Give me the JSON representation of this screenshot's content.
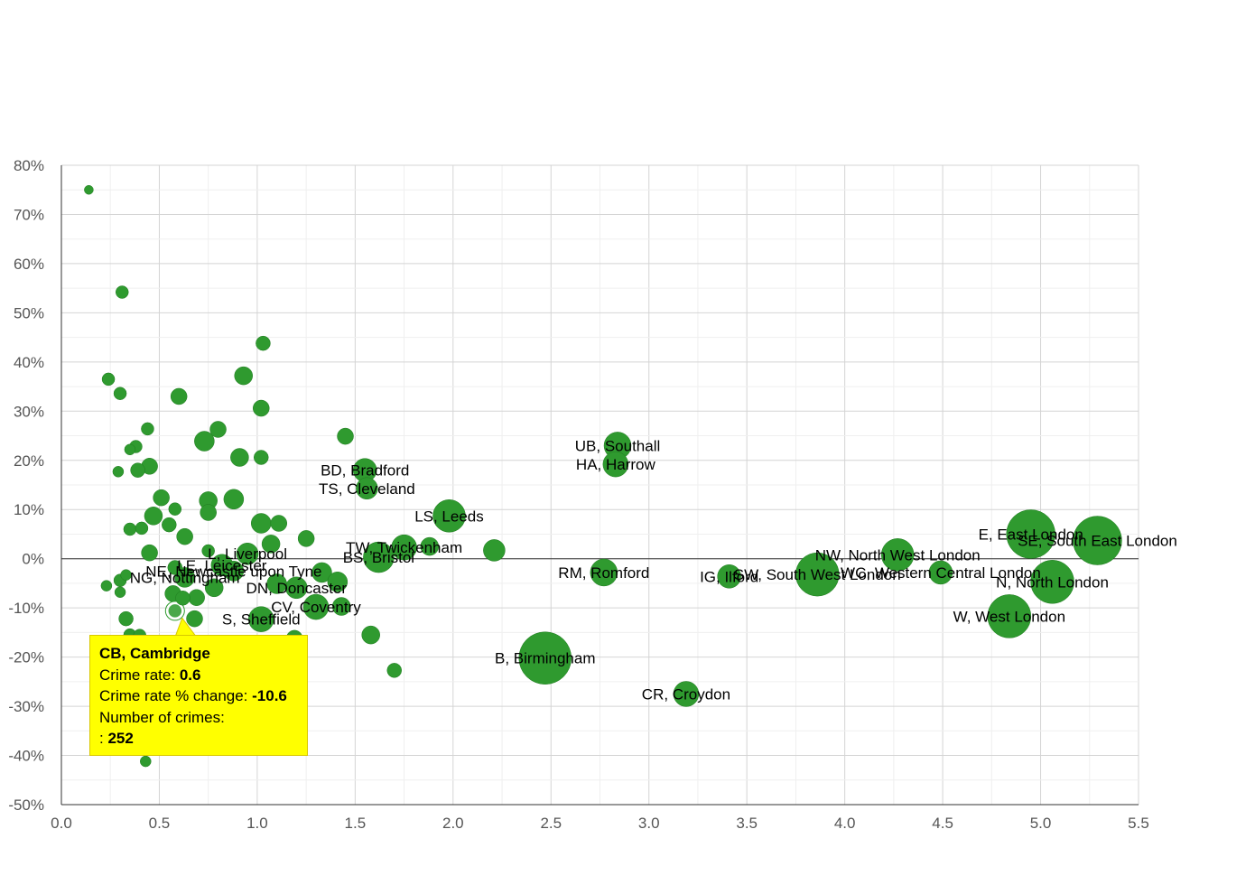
{
  "chart_data": {
    "type": "scatter",
    "xlim": [
      0,
      5.5
    ],
    "ylim": [
      -50,
      80
    ],
    "x_ticks": [
      "0.0",
      "0.5",
      "1.0",
      "1.5",
      "2.0",
      "2.5",
      "3.0",
      "3.5",
      "4.0",
      "4.5",
      "5.0",
      "5.5"
    ],
    "y_ticks": [
      "80%",
      "70%",
      "60%",
      "50%",
      "40%",
      "30%",
      "20%",
      "10%",
      "0%",
      "-10%",
      "-20%",
      "-30%",
      "-40%",
      "-50%"
    ],
    "grid": true,
    "colors": {
      "bubble": "#2f9a2f",
      "bubble_stroke": "#1f7a1f",
      "tooltip_bg": "#ffff00"
    },
    "points": [
      {
        "label": "UB, Southall",
        "x": 2.84,
        "y": 23.0,
        "size": 15
      },
      {
        "label": "HA, Harrow",
        "x": 2.83,
        "y": 19.2,
        "size": 14
      },
      {
        "label": "BD, Bradford",
        "x": 1.55,
        "y": 18.0,
        "size": 13
      },
      {
        "label": "TS, Cleveland",
        "x": 1.56,
        "y": 14.3,
        "size": 12
      },
      {
        "label": "LS, Leeds",
        "x": 1.98,
        "y": 8.7,
        "size": 18
      },
      {
        "label": "TW, Twickenham",
        "x": 1.75,
        "y": 2.3,
        "size": 14
      },
      {
        "label": "BS, Bristol",
        "x": 1.62,
        "y": 0.3,
        "size": 17
      },
      {
        "label": "",
        "x": 2.21,
        "y": 1.7,
        "size": 12
      },
      {
        "label": "",
        "x": 1.88,
        "y": 2.5,
        "size": 10
      },
      {
        "label": "RM, Romford",
        "x": 2.77,
        "y": -2.8,
        "size": 15
      },
      {
        "label": "IG, Ilford",
        "x": 3.41,
        "y": -3.6,
        "size": 13
      },
      {
        "label": "SW, South West London",
        "x": 3.86,
        "y": -3.2,
        "size": 24
      },
      {
        "label": "NW, North West London",
        "x": 4.27,
        "y": 0.8,
        "size": 18
      },
      {
        "label": "WC, Western Central London",
        "x": 4.49,
        "y": -2.8,
        "size": 13
      },
      {
        "label": "E, East London",
        "x": 4.95,
        "y": 5.0,
        "size": 27
      },
      {
        "label": "SE, South East London",
        "x": 5.29,
        "y": 3.7,
        "size": 27
      },
      {
        "label": "N, North London",
        "x": 5.06,
        "y": -4.7,
        "size": 24
      },
      {
        "label": "W, West London",
        "x": 4.84,
        "y": -11.7,
        "size": 24
      },
      {
        "label": "B, Birmingham",
        "x": 2.47,
        "y": -20.2,
        "size": 29
      },
      {
        "label": "CR, Croydon",
        "x": 3.19,
        "y": -27.5,
        "size": 14
      },
      {
        "label": "L, Liverpool",
        "x": 0.95,
        "y": 1.0,
        "size": 12
      },
      {
        "label": "LE, Leicester",
        "x": 0.82,
        "y": -1.3,
        "size": 12
      },
      {
        "label": "NE, Newcastle upon Tyne",
        "x": 0.88,
        "y": -2.5,
        "size": 11
      },
      {
        "label": "NG, Nottingham",
        "x": 0.63,
        "y": -3.8,
        "size": 11
      },
      {
        "label": "DN, Doncaster",
        "x": 1.2,
        "y": -5.9,
        "size": 12
      },
      {
        "label": "CV, Coventry",
        "x": 1.3,
        "y": -9.8,
        "size": 14
      },
      {
        "label": "S, Sheffield",
        "x": 1.02,
        "y": -12.3,
        "size": 14
      },
      {
        "label": "CB, Cambridge",
        "x": 0.58,
        "y": -10.6,
        "size": 8
      },
      {
        "label": "",
        "x": 0.14,
        "y": 75.0,
        "size": 5
      },
      {
        "label": "",
        "x": 0.31,
        "y": 54.2,
        "size": 7
      },
      {
        "label": "",
        "x": 1.03,
        "y": 43.8,
        "size": 8
      },
      {
        "label": "",
        "x": 0.24,
        "y": 36.5,
        "size": 7
      },
      {
        "label": "",
        "x": 0.93,
        "y": 37.2,
        "size": 10
      },
      {
        "label": "",
        "x": 0.3,
        "y": 33.6,
        "size": 7
      },
      {
        "label": "",
        "x": 0.6,
        "y": 33.0,
        "size": 9
      },
      {
        "label": "",
        "x": 1.02,
        "y": 30.6,
        "size": 9
      },
      {
        "label": "",
        "x": 0.44,
        "y": 26.4,
        "size": 7
      },
      {
        "label": "",
        "x": 0.8,
        "y": 26.3,
        "size": 9
      },
      {
        "label": "",
        "x": 0.73,
        "y": 23.9,
        "size": 11
      },
      {
        "label": "",
        "x": 1.45,
        "y": 24.9,
        "size": 9
      },
      {
        "label": "",
        "x": 0.38,
        "y": 22.8,
        "size": 7
      },
      {
        "label": "",
        "x": 0.35,
        "y": 22.2,
        "size": 6
      },
      {
        "label": "",
        "x": 0.91,
        "y": 20.6,
        "size": 10
      },
      {
        "label": "",
        "x": 1.02,
        "y": 20.6,
        "size": 8
      },
      {
        "label": "",
        "x": 0.45,
        "y": 18.8,
        "size": 9
      },
      {
        "label": "",
        "x": 0.39,
        "y": 18.0,
        "size": 8
      },
      {
        "label": "",
        "x": 0.29,
        "y": 17.7,
        "size": 6
      },
      {
        "label": "",
        "x": 0.51,
        "y": 12.4,
        "size": 9
      },
      {
        "label": "",
        "x": 0.75,
        "y": 11.8,
        "size": 10
      },
      {
        "label": "",
        "x": 0.88,
        "y": 12.1,
        "size": 11
      },
      {
        "label": "",
        "x": 0.58,
        "y": 10.1,
        "size": 7
      },
      {
        "label": "",
        "x": 0.75,
        "y": 9.4,
        "size": 9
      },
      {
        "label": "",
        "x": 0.47,
        "y": 8.7,
        "size": 10
      },
      {
        "label": "",
        "x": 1.02,
        "y": 7.2,
        "size": 11
      },
      {
        "label": "",
        "x": 1.11,
        "y": 7.2,
        "size": 9
      },
      {
        "label": "",
        "x": 0.55,
        "y": 6.9,
        "size": 8
      },
      {
        "label": "",
        "x": 0.35,
        "y": 6.0,
        "size": 7
      },
      {
        "label": "",
        "x": 0.41,
        "y": 6.2,
        "size": 7
      },
      {
        "label": "",
        "x": 0.63,
        "y": 4.5,
        "size": 9
      },
      {
        "label": "",
        "x": 1.25,
        "y": 4.1,
        "size": 9
      },
      {
        "label": "",
        "x": 1.07,
        "y": 3.0,
        "size": 10
      },
      {
        "label": "",
        "x": 0.45,
        "y": 1.2,
        "size": 9
      },
      {
        "label": "",
        "x": 0.75,
        "y": 1.6,
        "size": 7
      },
      {
        "label": "",
        "x": 0.58,
        "y": -1.8,
        "size": 8
      },
      {
        "label": "",
        "x": 0.33,
        "y": -3.3,
        "size": 6
      },
      {
        "label": "",
        "x": 0.3,
        "y": -4.4,
        "size": 7
      },
      {
        "label": "",
        "x": 0.23,
        "y": -5.5,
        "size": 6
      },
      {
        "label": "",
        "x": 0.3,
        "y": -6.8,
        "size": 6
      },
      {
        "label": "",
        "x": 0.78,
        "y": -5.9,
        "size": 10
      },
      {
        "label": "",
        "x": 0.57,
        "y": -7.1,
        "size": 9
      },
      {
        "label": "",
        "x": 0.62,
        "y": -8.0,
        "size": 8
      },
      {
        "label": "",
        "x": 0.69,
        "y": -7.9,
        "size": 9
      },
      {
        "label": "",
        "x": 1.1,
        "y": -5.1,
        "size": 11
      },
      {
        "label": "",
        "x": 1.33,
        "y": -2.8,
        "size": 11
      },
      {
        "label": "",
        "x": 1.41,
        "y": -4.7,
        "size": 11
      },
      {
        "label": "",
        "x": 1.43,
        "y": -9.7,
        "size": 10
      },
      {
        "label": "",
        "x": 0.33,
        "y": -12.2,
        "size": 8
      },
      {
        "label": "",
        "x": 0.68,
        "y": -12.2,
        "size": 9
      },
      {
        "label": "",
        "x": 1.58,
        "y": -15.5,
        "size": 10
      },
      {
        "label": "",
        "x": 1.19,
        "y": -16.2,
        "size": 9
      },
      {
        "label": "",
        "x": 0.35,
        "y": -15.5,
        "size": 7
      },
      {
        "label": "",
        "x": 0.4,
        "y": -15.6,
        "size": 7
      },
      {
        "label": "",
        "x": 1.7,
        "y": -22.7,
        "size": 8
      },
      {
        "label": "",
        "x": 0.43,
        "y": -41.2,
        "size": 6
      }
    ]
  },
  "tooltip": {
    "title": "CB, Cambridge",
    "rate_label": "Crime rate:",
    "rate_value": "0.6",
    "change_label": "Crime rate % change:",
    "change_value": "-10.6",
    "crimes_label": "Number of crimes:",
    "crimes_prefix": ":",
    "crimes_value": "252"
  }
}
